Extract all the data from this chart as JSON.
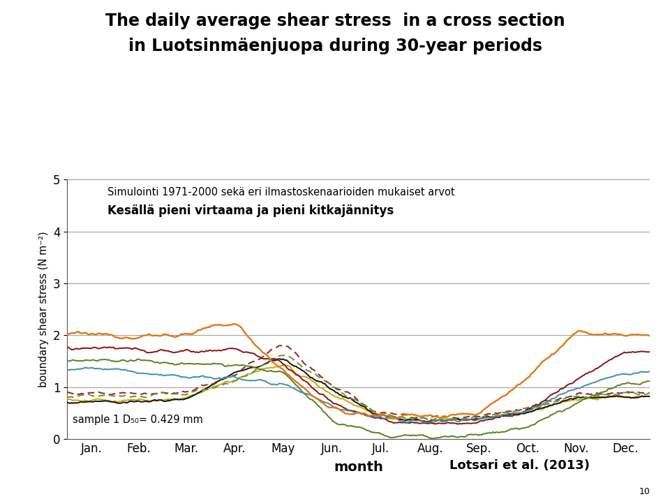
{
  "title_line1": "The daily average shear stress  in a cross section",
  "title_line2": "in Luotsinmäenjuopa during 30-year periods",
  "subtitle1": "Simulointi 1971-2000 sekä eri ilmastoskenaarioiden mukaiset arvot",
  "subtitle2": "Kesällä pieni virtaama ja pieni kitkajännitys",
  "xlabel": "month",
  "ylabel": "boundary shear stress (N m⁻²)",
  "annotation": "sample 1 D₅₀= 0.429 mm",
  "credit": "Lotsari et al. (2013)",
  "page_number": "10",
  "x_ticks": [
    "Jan.",
    "Feb.",
    "Mar.",
    "Apr.",
    "May",
    "Jun.",
    "Jul.",
    "Aug.",
    "Sep.",
    "Oct.",
    "Nov.",
    "Dec."
  ],
  "ylim": [
    0,
    5
  ],
  "yticks": [
    0,
    1,
    2,
    3,
    4,
    5
  ],
  "background_color": "#ffffff",
  "colors": {
    "orange": "#E07818",
    "dark_red": "#8B1010",
    "olive_green": "#5A8020",
    "cyan_blue": "#3A90B0",
    "yellow": "#C8A800",
    "black": "#111111",
    "dark_red_dashed": "#9B2020",
    "olive_dashed": "#6A9030"
  }
}
